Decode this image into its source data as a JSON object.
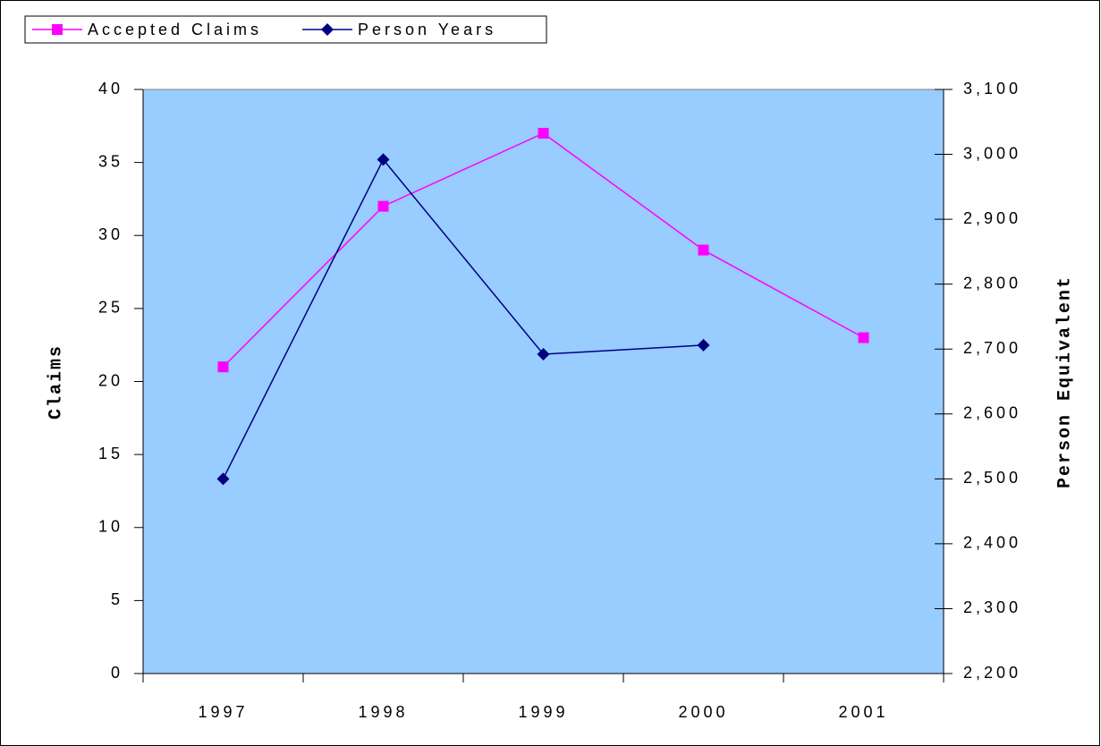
{
  "chart_data": {
    "type": "line",
    "categories": [
      "1997",
      "1998",
      "1999",
      "2000",
      "2001"
    ],
    "y_label": "Claims",
    "y2_label": "Person Equivalent",
    "background": "#99ccff",
    "legend": "top-left",
    "series": [
      {
        "name": "Accepted Claims",
        "color": "#ff00ff",
        "marker": "square",
        "values": [
          21,
          32,
          37,
          29,
          23
        ]
      },
      {
        "name": "Person Years",
        "color": "#000080",
        "marker": "diamond",
        "axis": "y2",
        "values": [
          2500,
          2992,
          2692,
          2706,
          null
        ]
      }
    ],
    "ylim": [
      0,
      40
    ],
    "yticks": [
      0,
      5,
      10,
      15,
      20,
      25,
      30,
      35,
      40
    ],
    "y2lim": [
      2200,
      3100
    ],
    "y2ticks": [
      {
        "value": 2200,
        "label": "2,200"
      },
      {
        "value": 2300,
        "label": "2,300"
      },
      {
        "value": 2400,
        "label": "2,400"
      },
      {
        "value": 2500,
        "label": "2,500"
      },
      {
        "value": 2600,
        "label": "2,600"
      },
      {
        "value": 2700,
        "label": "2,700"
      },
      {
        "value": 2800,
        "label": "2,800"
      },
      {
        "value": 2900,
        "label": "2,900"
      },
      {
        "value": 3000,
        "label": "3,000"
      },
      {
        "value": 3100,
        "label": "3,100"
      }
    ]
  }
}
